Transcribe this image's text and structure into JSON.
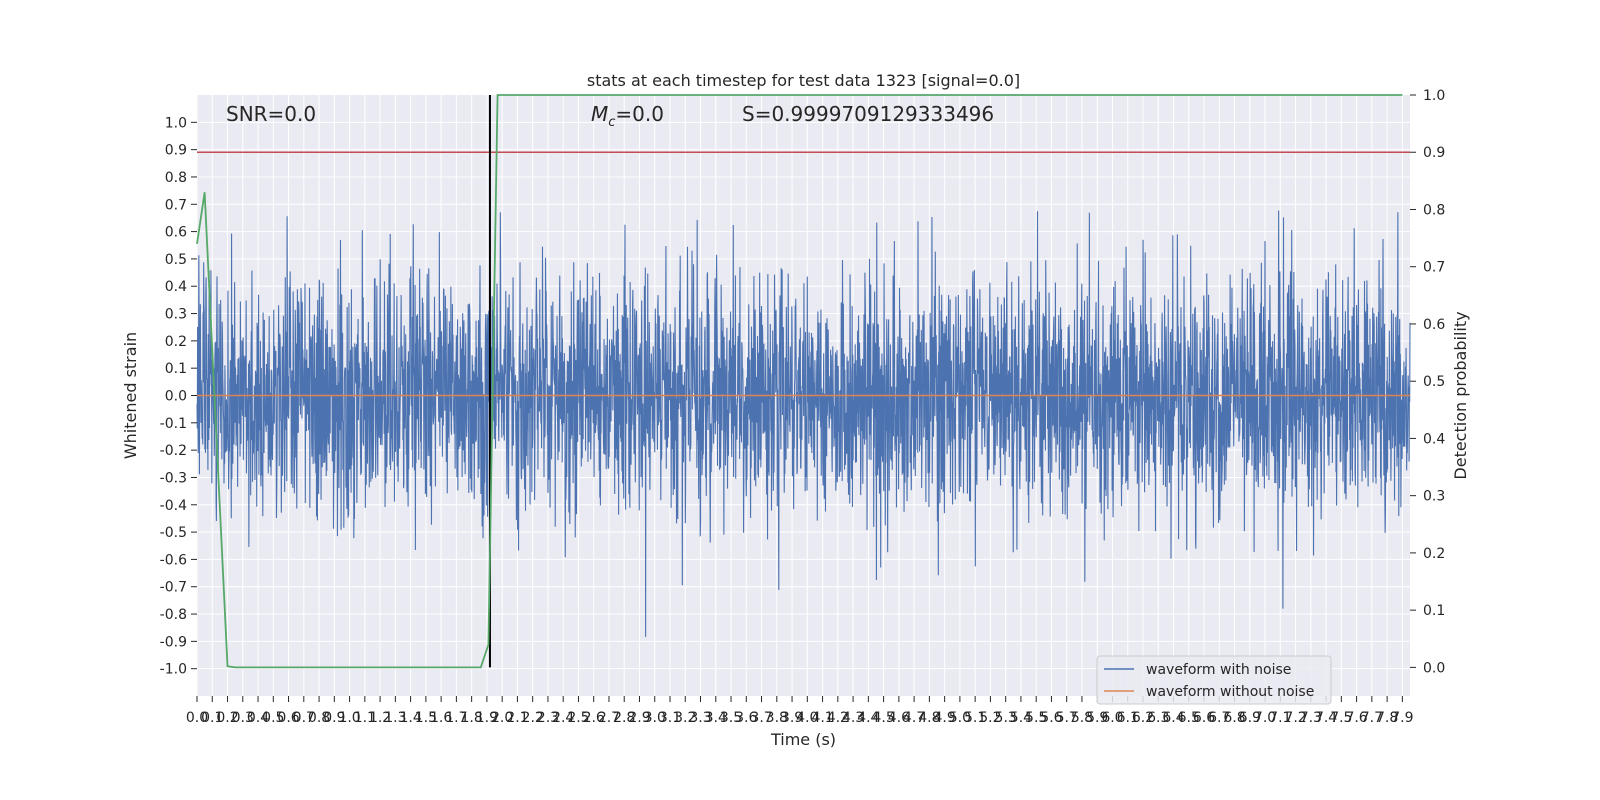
{
  "figure": {
    "title": "stats at each timestep for test data 1323 [signal=0.0]",
    "snr_label": "SNR=0.0",
    "mc_label": "=0.0",
    "mc_symbol": "M",
    "mc_subscript": "c",
    "s_label": "S=0.9999709129333496"
  },
  "colors": {
    "background": "#eaeaf2",
    "grid": "#ffffff",
    "waveform_noise": "#4c72b0",
    "waveform_clean": "#dd8452",
    "detection_probability": "#55a868",
    "threshold": "#c44e52",
    "marker": "#000000"
  },
  "chart_data": {
    "type": "line",
    "title": "stats at each timestep for test data 1323 [signal=0.0]",
    "xlabel": "Time (s)",
    "ylabel": "Whitened strain",
    "y2label": "Detection probability",
    "xlim": [
      0.0,
      7.95
    ],
    "ylim": [
      -1.1,
      1.1
    ],
    "y2lim": [
      -0.05,
      1.0
    ],
    "x_ticks": [
      0.0,
      0.1,
      0.2,
      0.3,
      0.4,
      0.5,
      0.6,
      0.7,
      0.8,
      0.9,
      1.0,
      1.1,
      1.2,
      1.3,
      1.4,
      1.5,
      1.6,
      1.7,
      1.8,
      1.9,
      2.0,
      2.1,
      2.2,
      2.3,
      2.4,
      2.5,
      2.6,
      2.7,
      2.8,
      2.9,
      3.0,
      3.1,
      3.2,
      3.3,
      3.4,
      3.5,
      3.6,
      3.7,
      3.8,
      3.9,
      4.0,
      4.1,
      4.2,
      4.3,
      4.4,
      4.5,
      4.6,
      4.7,
      4.8,
      4.9,
      5.0,
      5.1,
      5.2,
      5.3,
      5.4,
      5.5,
      5.6,
      5.7,
      5.8,
      5.9,
      6.0,
      6.1,
      6.2,
      6.3,
      6.4,
      6.5,
      6.6,
      6.7,
      6.8,
      6.9,
      7.0,
      7.1,
      7.2,
      7.3,
      7.4,
      7.5,
      7.6,
      7.7,
      7.8,
      7.9
    ],
    "y_ticks": [
      -1.0,
      -0.9,
      -0.8,
      -0.7,
      -0.6,
      -0.5,
      -0.4,
      -0.3,
      -0.2,
      -0.1,
      0.0,
      0.1,
      0.2,
      0.3,
      0.4,
      0.5,
      0.6,
      0.7,
      0.8,
      0.9,
      1.0
    ],
    "y2_ticks": [
      0.0,
      0.1,
      0.2,
      0.3,
      0.4,
      0.5,
      0.6,
      0.7,
      0.8,
      0.9,
      1.0
    ],
    "grid": true,
    "legend": "bottom-right",
    "series": [
      {
        "name": "waveform with noise",
        "axis": "left",
        "style": "dense noise, approx. zero mean, peaks about ±0.8",
        "noise_amplitude": 0.22,
        "seed": 1323
      },
      {
        "name": "waveform without noise",
        "axis": "left",
        "x": [
          0.0,
          7.95
        ],
        "y": [
          0.0,
          0.0
        ]
      },
      {
        "axis": "right",
        "x": [
          0.0,
          0.05,
          0.2,
          0.25,
          0.5,
          1.0,
          1.5,
          1.86,
          1.91,
          1.97,
          2.0,
          2.5,
          3.0,
          4.0,
          5.0,
          6.0,
          7.0,
          7.9
        ],
        "y": [
          0.74,
          0.83,
          0.002,
          0.0,
          0.0,
          0.0,
          0.0,
          0.0,
          0.04,
          1.0,
          1.0,
          1.0,
          1.0,
          1.0,
          1.0,
          1.0,
          1.0,
          1.0
        ]
      }
    ],
    "annotations": {
      "threshold_y2": 0.9,
      "marker_x": 1.92
    }
  }
}
